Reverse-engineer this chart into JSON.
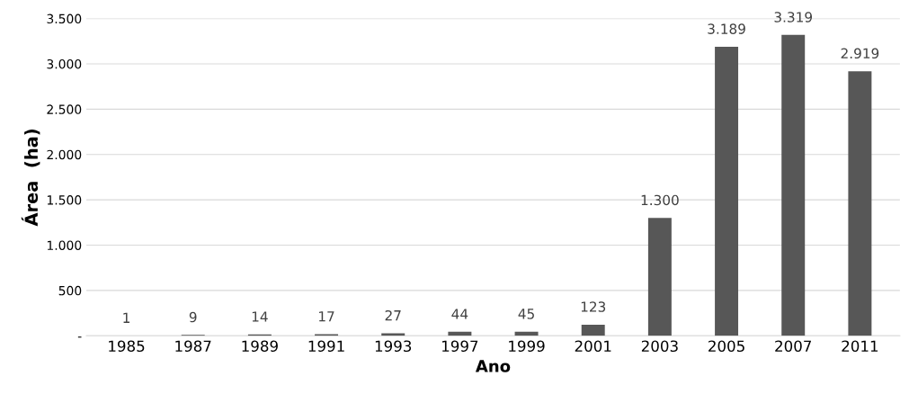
{
  "chart_data": {
    "type": "bar",
    "xlabel": "Ano",
    "ylabel": "Área  (ha)",
    "categories": [
      "1985",
      "1987",
      "1989",
      "1991",
      "1993",
      "1997",
      "1999",
      "2001",
      "2003",
      "2005",
      "2007",
      "2011"
    ],
    "values": [
      1,
      9,
      14,
      17,
      27,
      44,
      45,
      123,
      1300,
      3189,
      3319,
      2919
    ],
    "value_labels": [
      "1",
      "9",
      "14",
      "17",
      "27",
      "44",
      "45",
      "123",
      "1.300",
      "3.189",
      "3.319",
      "2.919"
    ],
    "color": "#575757",
    "ylim": [
      0,
      3500
    ],
    "yticks": [
      {
        "value": 0,
        "label": "-"
      },
      500,
      {
        "value": 1000,
        "label": "1.000"
      },
      {
        "value": 1500,
        "label": "1.500"
      },
      {
        "value": 2000,
        "label": "2.000"
      },
      {
        "value": 2500,
        "label": "2.500"
      },
      {
        "value": 3000,
        "label": "3.000"
      },
      {
        "value": 3500,
        "label": "3.500"
      }
    ],
    "grid": "y",
    "legend": false
  }
}
